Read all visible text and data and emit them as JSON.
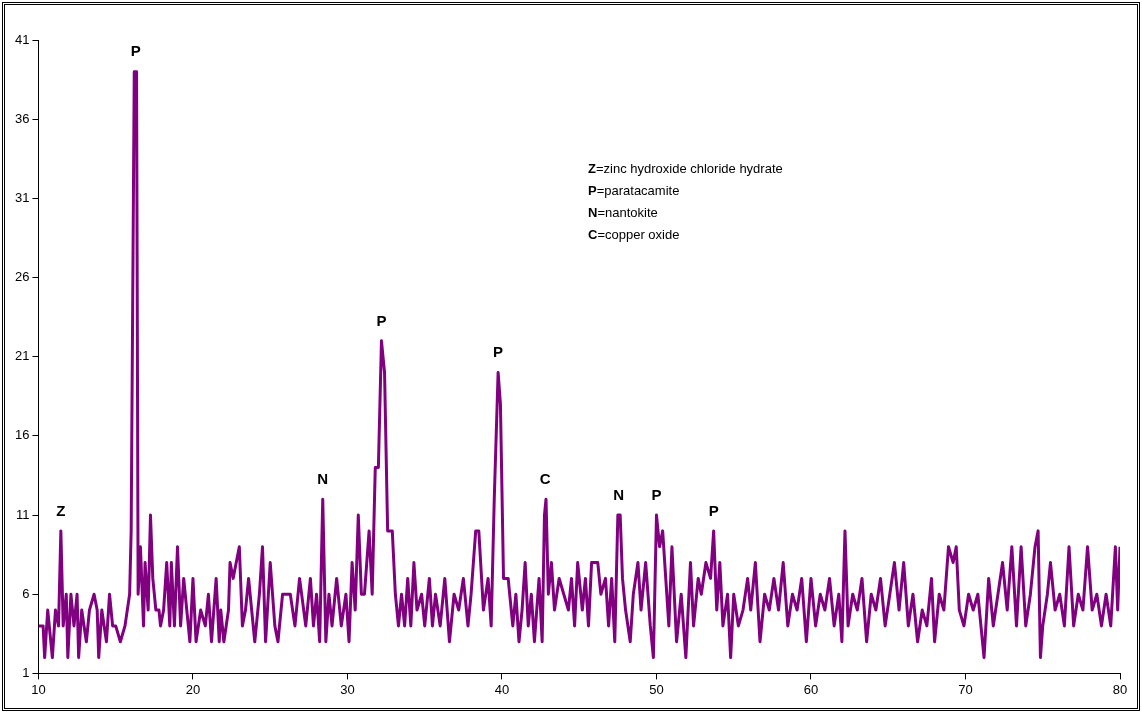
{
  "chart_data": {
    "type": "line",
    "x": [
      10,
      10.3,
      10.4,
      10.6,
      10.9,
      11.1,
      11.3,
      11.45,
      11.6,
      11.8,
      11.9,
      12.1,
      12.3,
      12.5,
      12.6,
      12.8,
      13.1,
      13.3,
      13.6,
      13.8,
      13.9,
      14.1,
      14.4,
      14.6,
      14.8,
      15,
      15.3,
      15.6,
      15.9,
      16,
      16.2,
      16.35,
      16.45,
      16.6,
      16.8,
      16.9,
      17.1,
      17.25,
      17.4,
      17.6,
      17.8,
      17.9,
      18.1,
      18.3,
      18.5,
      18.6,
      18.8,
      19,
      19.2,
      19.4,
      19.6,
      19.8,
      20,
      20.2,
      20.5,
      20.8,
      21,
      21.2,
      21.5,
      21.7,
      21.8,
      22,
      22.3,
      22.4,
      22.6,
      22.8,
      23,
      23.2,
      23.4,
      23.6,
      23.8,
      24,
      24.3,
      24.5,
      24.7,
      25,
      25.3,
      25.5,
      25.8,
      26.3,
      26.6,
      26.9,
      27.3,
      27.6,
      27.8,
      28,
      28.2,
      28.4,
      28.6,
      28.8,
      29,
      29.3,
      29.6,
      29.9,
      30.1,
      30.3,
      30.5,
      30.7,
      30.9,
      31.1,
      31.4,
      31.6,
      31.8,
      32,
      32.2,
      32.4,
      32.6,
      32.9,
      33.1,
      33.3,
      33.5,
      33.7,
      33.9,
      34.1,
      34.3,
      34.5,
      34.8,
      35,
      35.3,
      35.5,
      35.7,
      36,
      36.3,
      36.6,
      36.9,
      37.2,
      37.5,
      37.8,
      38,
      38.3,
      38.5,
      38.8,
      39.1,
      39.3,
      39.5,
      39.75,
      39.9,
      40.1,
      40.4,
      40.7,
      40.9,
      41.1,
      41.3,
      41.5,
      41.7,
      41.9,
      42.1,
      42.4,
      42.6,
      42.75,
      42.85,
      43,
      43.2,
      43.4,
      43.7,
      44,
      44.3,
      44.5,
      44.7,
      44.9,
      45.2,
      45.4,
      45.6,
      45.8,
      46.2,
      46.4,
      46.7,
      46.9,
      47.1,
      47.3,
      47.5,
      47.65,
      47.8,
      48,
      48.3,
      48.5,
      48.8,
      49,
      49.3,
      49.6,
      49.8,
      50,
      50.2,
      50.4,
      50.6,
      50.8,
      51,
      51.3,
      51.6,
      51.9,
      52.2,
      52.4,
      52.7,
      52.9,
      53.2,
      53.5,
      53.7,
      53.9,
      54.1,
      54.3,
      54.6,
      54.8,
      55,
      55.3,
      55.6,
      55.9,
      56.1,
      56.4,
      56.7,
      57,
      57.3,
      57.6,
      57.9,
      58.2,
      58.5,
      58.8,
      59.1,
      59.4,
      59.7,
      60,
      60.3,
      60.6,
      60.9,
      61.2,
      61.5,
      61.8,
      62,
      62.2,
      62.4,
      62.7,
      63,
      63.3,
      63.6,
      63.9,
      64.2,
      64.5,
      64.8,
      65.1,
      65.4,
      65.7,
      66,
      66.3,
      66.6,
      66.9,
      67.2,
      67.5,
      67.8,
      68,
      68.3,
      68.6,
      68.9,
      69.2,
      69.4,
      69.6,
      69.9,
      70.2,
      70.5,
      70.8,
      71,
      71.2,
      71.5,
      71.8,
      72.1,
      72.4,
      72.7,
      73,
      73.3,
      73.6,
      73.9,
      74.2,
      74.5,
      74.7,
      74.85,
      75,
      75.3,
      75.5,
      75.8,
      76.1,
      76.4,
      76.7,
      77,
      77.3,
      77.6,
      77.9,
      78.2,
      78.5,
      78.8,
      79.1,
      79.4,
      79.7,
      79.85,
      80
    ],
    "series": [
      {
        "color": "#800080",
        "values": [
          4,
          4,
          2,
          5,
          2,
          5,
          4,
          10,
          4,
          6,
          2,
          6,
          4,
          6,
          2,
          5,
          3,
          5,
          6,
          5,
          2,
          5,
          3,
          6,
          4,
          4,
          3,
          4,
          6,
          10,
          39,
          39,
          6,
          9,
          4,
          8,
          5,
          11,
          7,
          5,
          5,
          4,
          5,
          8,
          4,
          8,
          4,
          9,
          4,
          7,
          5,
          3,
          7,
          3,
          5,
          4,
          6,
          3,
          7,
          3,
          5,
          3,
          5,
          8,
          7,
          8,
          9,
          4,
          5,
          7,
          5,
          3,
          6,
          9,
          3,
          8,
          4,
          3,
          6,
          6,
          4,
          7,
          4,
          7,
          4,
          6,
          3,
          12,
          3,
          6,
          4,
          7,
          4,
          6,
          3,
          8,
          5,
          11,
          6,
          6,
          10,
          6,
          14,
          14,
          22,
          20,
          10,
          10,
          6,
          4,
          6,
          4,
          7,
          4,
          8,
          5,
          6,
          4,
          7,
          4,
          6,
          4,
          7,
          3,
          6,
          5,
          7,
          4,
          6,
          10,
          10,
          5,
          7,
          4,
          12,
          20,
          18,
          7,
          7,
          4,
          6,
          3,
          5,
          8,
          4,
          6,
          3,
          7,
          3,
          11,
          12,
          6,
          8,
          5,
          7,
          6,
          5,
          7,
          4,
          8,
          5,
          7,
          4,
          8,
          8,
          6,
          7,
          4,
          7,
          3,
          11,
          11,
          7,
          5,
          3,
          6,
          8,
          5,
          8,
          4,
          2,
          11,
          9,
          10,
          7,
          4,
          9,
          3,
          6,
          2,
          8,
          4,
          7,
          6,
          8,
          7,
          10,
          5,
          8,
          4,
          6,
          2,
          6,
          4,
          5,
          7,
          5,
          8,
          3,
          6,
          5,
          7,
          5,
          8,
          4,
          6,
          5,
          7,
          3,
          7,
          4,
          6,
          5,
          7,
          4,
          6,
          3,
          10,
          4,
          6,
          5,
          7,
          3,
          6,
          5,
          7,
          4,
          6,
          8,
          5,
          8,
          4,
          6,
          3,
          5,
          4,
          7,
          3,
          6,
          5,
          9,
          8,
          9,
          5,
          4,
          6,
          5,
          6,
          4,
          2,
          7,
          4,
          6,
          8,
          5,
          9,
          4,
          9,
          4,
          6,
          9,
          10,
          2,
          4,
          6,
          8,
          5,
          6,
          4,
          9,
          4,
          6,
          5,
          9,
          5,
          6,
          4,
          6,
          4,
          9,
          5,
          9
        ]
      }
    ],
    "xlim": [
      10,
      80
    ],
    "xticks": [
      10,
      20,
      30,
      40,
      50,
      60,
      70,
      80
    ],
    "ylim": [
      1,
      41
    ],
    "yticks": [
      1,
      6,
      11,
      16,
      21,
      26,
      31,
      36,
      41
    ],
    "grid": false,
    "legend": false,
    "marker": "none",
    "line_style": "solid",
    "annotations": [
      {
        "text": "Z",
        "x": 11.45,
        "y": 10
      },
      {
        "text": "P",
        "x": 16.3,
        "y": 39
      },
      {
        "text": "N",
        "x": 28.4,
        "y": 12
      },
      {
        "text": "P",
        "x": 32.2,
        "y": 22
      },
      {
        "text": "P",
        "x": 39.75,
        "y": 20
      },
      {
        "text": "C",
        "x": 42.8,
        "y": 12
      },
      {
        "text": "N",
        "x": 47.55,
        "y": 11
      },
      {
        "text": "P",
        "x": 50,
        "y": 11
      },
      {
        "text": "P",
        "x": 53.7,
        "y": 10
      },
      "Z=zinc hydroxide chloride hydrate",
      "P=paratacamite",
      "N=nantokite",
      "C=copper oxide"
    ]
  }
}
